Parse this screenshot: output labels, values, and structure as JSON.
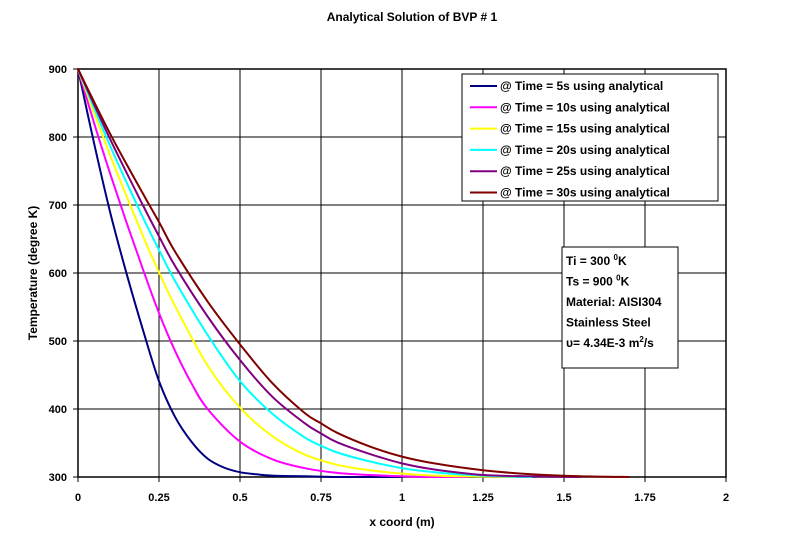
{
  "chart_data": {
    "type": "line",
    "title": "Analytical Solution of BVP # 1",
    "xlabel": "x coord (m)",
    "ylabel": "Temperature (degree K)",
    "xlim": [
      0,
      2
    ],
    "ylim": [
      300,
      900
    ],
    "xticks": [
      0,
      0.25,
      0.5,
      0.75,
      1,
      1.25,
      1.5,
      1.75,
      2
    ],
    "xtick_labels": [
      "0",
      "0.25",
      "0.5",
      "0.75",
      "1",
      "1.25",
      "1.5",
      "1.75",
      "2"
    ],
    "yticks": [
      300,
      400,
      500,
      600,
      700,
      800,
      900
    ],
    "ytick_labels": [
      "300",
      "400",
      "500",
      "600",
      "700",
      "800",
      "900"
    ],
    "grid": true,
    "legend_position": "top-right",
    "series": [
      {
        "name": "@ Time = 5s using analytical",
        "color": "#000080",
        "x": [
          0,
          0.05,
          0.1,
          0.15,
          0.2,
          0.25,
          0.3,
          0.35,
          0.4,
          0.45,
          0.5,
          0.55,
          0.6,
          0.7,
          0.8,
          0.9,
          1.0
        ],
        "y": [
          900,
          790,
          688,
          599,
          517,
          441,
          388,
          352,
          327,
          314,
          307,
          304,
          302,
          301,
          300,
          300,
          300
        ]
      },
      {
        "name": "@ Time = 10s using analytical",
        "color": "#ff00ff",
        "x": [
          0,
          0.05,
          0.1,
          0.15,
          0.2,
          0.25,
          0.3,
          0.35,
          0.4,
          0.5,
          0.6,
          0.7,
          0.8,
          0.9,
          1.0,
          1.1,
          1.2
        ],
        "y": [
          900,
          820,
          745,
          674,
          606,
          541,
          485,
          438,
          400,
          352,
          326,
          313,
          306,
          303,
          301,
          300,
          300
        ]
      },
      {
        "name": "@ Time = 15s using analytical",
        "color": "#ffff00",
        "x": [
          0,
          0.1,
          0.2,
          0.25,
          0.3,
          0.4,
          0.5,
          0.6,
          0.7,
          0.8,
          0.9,
          1.0,
          1.1,
          1.2,
          1.35
        ],
        "y": [
          900,
          772,
          655,
          601,
          551,
          464,
          402,
          360,
          333,
          318,
          310,
          305,
          302,
          301,
          300
        ]
      },
      {
        "name": "@ Time = 20s using analytical",
        "color": "#00ffff",
        "x": [
          0,
          0.1,
          0.2,
          0.25,
          0.3,
          0.4,
          0.5,
          0.6,
          0.7,
          0.75,
          0.8,
          0.9,
          1.0,
          1.1,
          1.25,
          1.4
        ],
        "y": [
          900,
          786,
          682,
          634,
          588,
          509,
          441,
          393,
          358,
          346,
          336,
          323,
          313,
          307,
          302,
          300
        ]
      },
      {
        "name": "@ Time = 25s using analytical",
        "color": "#800080",
        "x": [
          0,
          0.1,
          0.2,
          0.25,
          0.3,
          0.4,
          0.5,
          0.6,
          0.7,
          0.75,
          0.8,
          0.9,
          1.0,
          1.1,
          1.25,
          1.4,
          1.55
        ],
        "y": [
          900,
          796,
          700,
          654,
          610,
          536,
          472,
          418,
          379,
          364,
          351,
          334,
          320,
          311,
          303,
          301,
          300
        ]
      },
      {
        "name": "@ Time = 30s using analytical",
        "color": "#800000",
        "x": [
          0,
          0.1,
          0.2,
          0.25,
          0.3,
          0.4,
          0.5,
          0.6,
          0.7,
          0.75,
          0.8,
          0.9,
          1.0,
          1.1,
          1.25,
          1.4,
          1.55,
          1.7
        ],
        "y": [
          900,
          804,
          717,
          675,
          631,
          558,
          495,
          438,
          394,
          379,
          365,
          345,
          330,
          320,
          310,
          304,
          301,
          300
        ]
      }
    ],
    "info_box": [
      {
        "main": "Ti = 300 ",
        "sup": "0",
        "tail": "K"
      },
      {
        "main": "Ts = 900 ",
        "sup": "0",
        "tail": "K"
      },
      {
        "main": "Material: AISI304",
        "sup": "",
        "tail": ""
      },
      {
        "main": "Stainless Steel",
        "sup": "",
        "tail": ""
      },
      {
        "main": "υ= 4.34E-3 m",
        "sup": "2",
        "tail": "/s"
      }
    ]
  }
}
